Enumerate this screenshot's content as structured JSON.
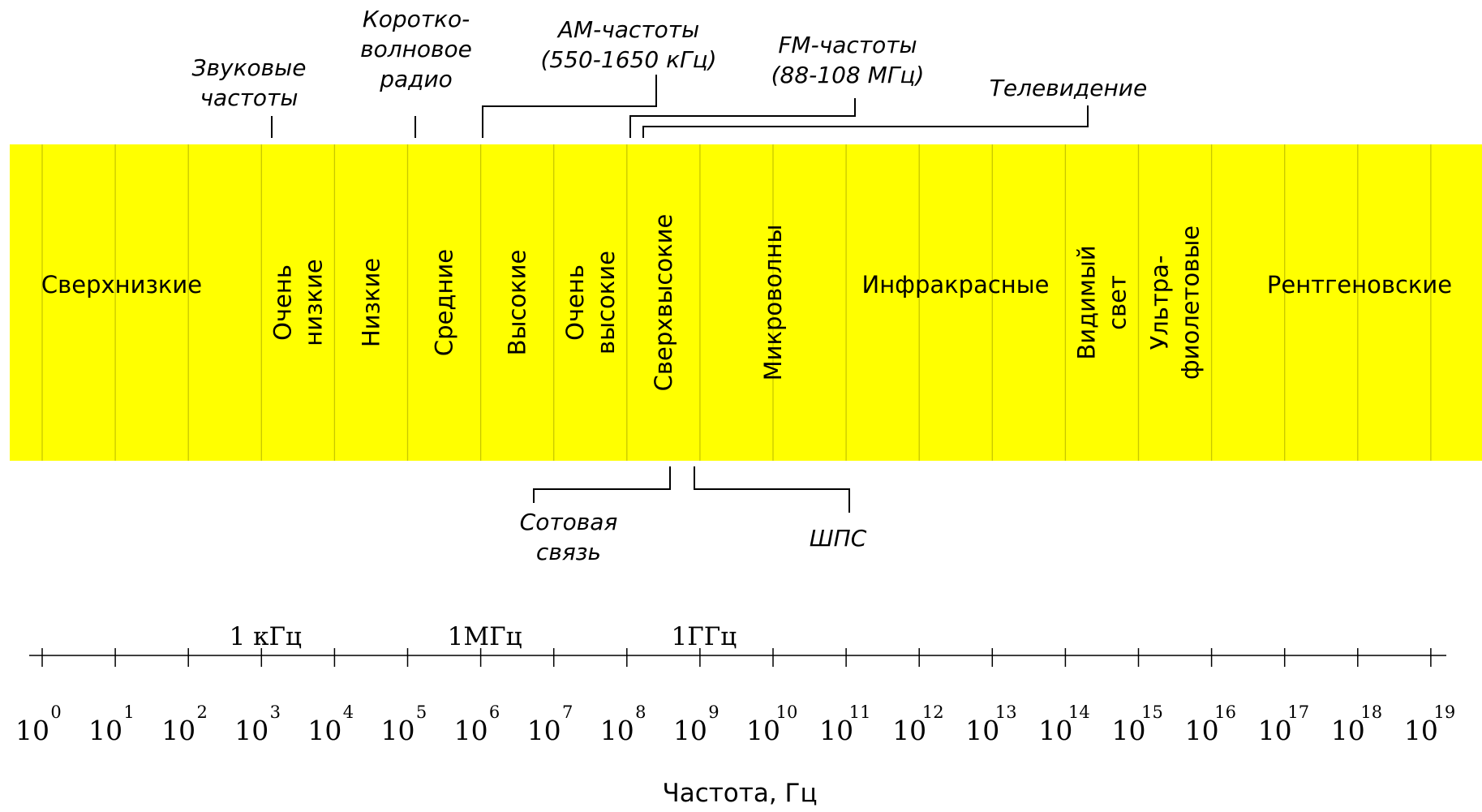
{
  "colors": {
    "band": "#FFFF00",
    "divider": "#C8C800",
    "line": "#000000",
    "background": "#FFFFFF"
  },
  "bands": [
    {
      "id": "sverkhnizkie",
      "label": [
        "Сверхнизкие"
      ],
      "from": 0,
      "to": 3,
      "rotated": false
    },
    {
      "id": "ochen-nizkie",
      "label": [
        "Очень",
        "низкие"
      ],
      "from": 3,
      "to": 4,
      "rotated": true
    },
    {
      "id": "nizkie",
      "label": [
        "Низкие"
      ],
      "from": 4,
      "to": 5,
      "rotated": true
    },
    {
      "id": "srednie",
      "label": [
        "Средние"
      ],
      "from": 5,
      "to": 6,
      "rotated": true
    },
    {
      "id": "vysokie",
      "label": [
        "Высокие"
      ],
      "from": 6,
      "to": 7,
      "rotated": true
    },
    {
      "id": "ochen-vysokie",
      "label": [
        "Очень",
        "высокие"
      ],
      "from": 7,
      "to": 8,
      "rotated": true
    },
    {
      "id": "sverkhvysokie",
      "label": [
        "Сверхвысокие"
      ],
      "from": 8,
      "to": 9,
      "rotated": true
    },
    {
      "id": "mikrovolny",
      "label": [
        "Микроволны"
      ],
      "from": 9,
      "to": 11,
      "rotated": true
    },
    {
      "id": "infrakrasnye",
      "label": [
        "Инфракрасные"
      ],
      "from": 11,
      "to": 14,
      "rotated": false
    },
    {
      "id": "vidimyi-svet",
      "label": [
        "Видимый",
        "свет"
      ],
      "from": 14,
      "to": 15,
      "rotated": true
    },
    {
      "id": "ultrafioletovye",
      "label": [
        "Ультра-",
        "фиолетовые"
      ],
      "from": 15,
      "to": 16,
      "rotated": true
    },
    {
      "id": "rentgenovskie",
      "label": [
        "Рентгеновские"
      ],
      "from": 16,
      "to": 19,
      "rotated": false
    }
  ],
  "annotations_above": [
    {
      "id": "zvukovye-chastoty",
      "lines": [
        "Звуковые",
        "частоты"
      ]
    },
    {
      "id": "korotkovolnovoe-radio",
      "lines": [
        "Коротко-",
        "волновое",
        "радио"
      ]
    },
    {
      "id": "am-chastoty",
      "lines": [
        "АМ-частоты",
        "(550-1650 кГц)"
      ]
    },
    {
      "id": "fm-chastoty",
      "lines": [
        "FM-частоты",
        "(88-108 МГц)"
      ]
    },
    {
      "id": "televidenie",
      "lines": [
        "Телевидение"
      ]
    }
  ],
  "annotations_below": [
    {
      "id": "sotovaya-svyaz",
      "lines": [
        "Сотовая",
        "связь"
      ]
    },
    {
      "id": "shps",
      "lines": [
        "ШПС"
      ]
    }
  ],
  "axis": {
    "base": "10",
    "exponents": [
      "0",
      "1",
      "2",
      "3",
      "4",
      "5",
      "6",
      "7",
      "8",
      "9",
      "10",
      "11",
      "12",
      "13",
      "14",
      "15",
      "16",
      "17",
      "18",
      "19"
    ],
    "unit_labels": [
      {
        "text": "1 кГц",
        "exponent": 3
      },
      {
        "text": "1МГц",
        "exponent": 6
      },
      {
        "text": "1ГГц",
        "exponent": 9
      }
    ],
    "title": "Частота, Гц"
  }
}
